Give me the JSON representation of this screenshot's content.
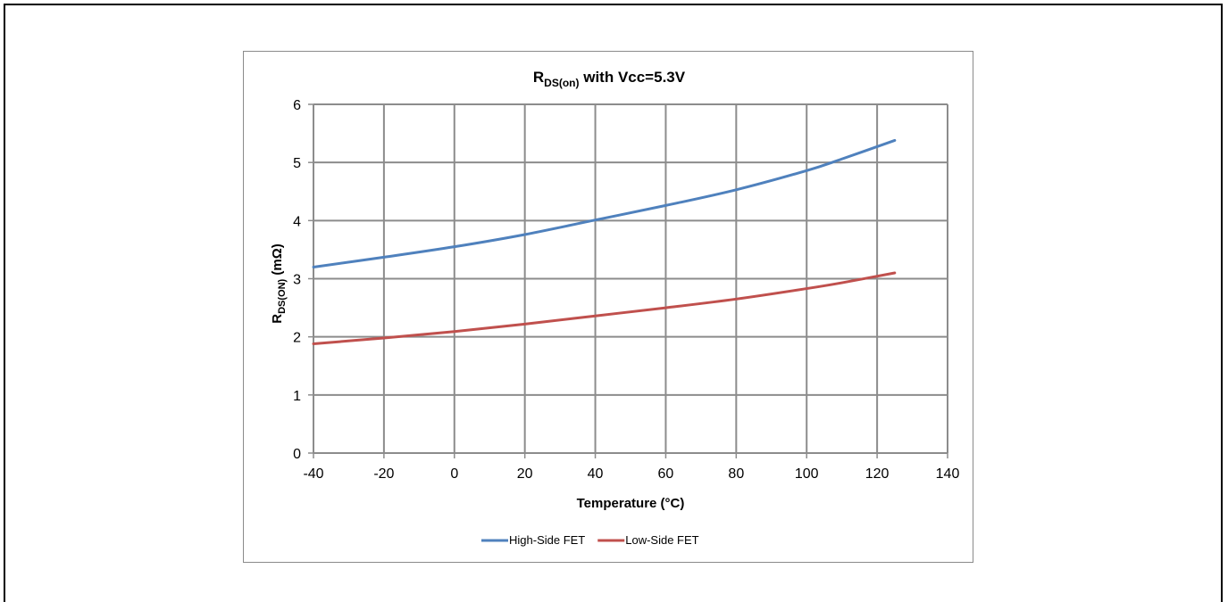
{
  "chart_data": {
    "type": "line",
    "title_main": "R",
    "title_sub": "DS(on)",
    "title_rest": " with Vcc=5.3V",
    "xlabel": "Temperature (°C)",
    "ylabel_main": "R",
    "ylabel_sub": "DS(ON)",
    "ylabel_rest": " (mΩ)",
    "xlim": [
      -40,
      140
    ],
    "ylim": [
      0,
      6
    ],
    "x_ticks": [
      -40,
      -20,
      0,
      20,
      40,
      60,
      80,
      100,
      120,
      140
    ],
    "y_ticks": [
      0,
      1,
      2,
      3,
      4,
      5,
      6
    ],
    "grid": true,
    "legend_position": "bottom",
    "series": [
      {
        "name": "High-Side FET",
        "color": "#4f81bd",
        "x": [
          -40,
          -20,
          0,
          20,
          40,
          60,
          80,
          100,
          110,
          125
        ],
        "y": [
          3.2,
          3.37,
          3.55,
          3.76,
          4.01,
          4.26,
          4.53,
          4.86,
          5.06,
          5.38
        ]
      },
      {
        "name": "Low-Side FET",
        "color": "#c0504d",
        "x": [
          -40,
          -20,
          0,
          20,
          40,
          60,
          80,
          100,
          110,
          125
        ],
        "y": [
          1.88,
          1.98,
          2.09,
          2.22,
          2.36,
          2.5,
          2.65,
          2.83,
          2.93,
          3.1
        ]
      }
    ]
  }
}
